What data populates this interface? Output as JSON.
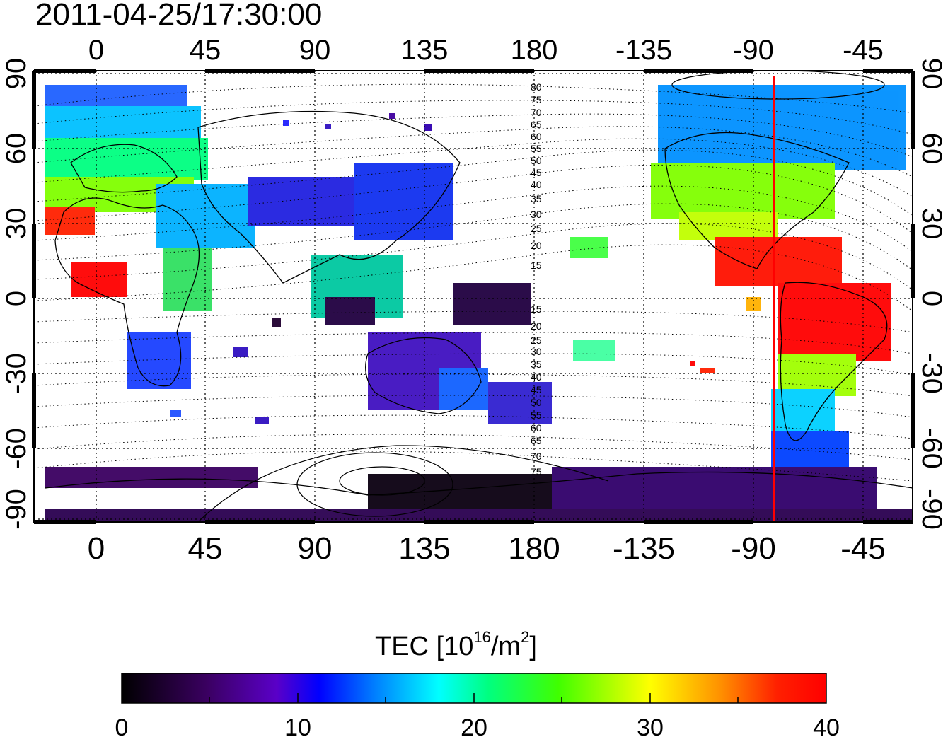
{
  "title": "2011-04-25/17:30:00",
  "map": {
    "lon_ticks_top": [
      "0",
      "45",
      "90",
      "135",
      "180",
      "-135",
      "-90",
      "-45"
    ],
    "lon_ticks_bottom": [
      "0",
      "45",
      "90",
      "135",
      "180",
      "-135",
      "-90",
      "-45"
    ],
    "lat_ticks_left": [
      "90",
      "60",
      "30",
      "0",
      "-30",
      "-60",
      "-90"
    ],
    "lat_ticks_right": [
      "90",
      "60",
      "30",
      "0",
      "-30",
      "-60",
      "-90"
    ],
    "contour_labels_north": [
      "80",
      "75",
      "70",
      "65",
      "60",
      "55",
      "50",
      "45",
      "40",
      "35",
      "30",
      "25",
      "20",
      "15"
    ],
    "contour_labels_south": [
      "15",
      "20",
      "25",
      "30",
      "35",
      "40",
      "45",
      "50",
      "55",
      "60",
      "65",
      "70",
      "75"
    ],
    "meridian_marker_lon": -85,
    "marker_color": "#ff0000"
  },
  "colorbar": {
    "title_text": "TEC  [10",
    "title_sup1": "16",
    "title_mid": "/m",
    "title_sup2": "2",
    "title_end": "]",
    "tick_labels": [
      "0",
      "10",
      "20",
      "30",
      "40"
    ],
    "min": 0,
    "max": 40,
    "colors": [
      "#000000",
      "#3a0060",
      "#5a00c8",
      "#0000ff",
      "#0080ff",
      "#00ffff",
      "#00ff60",
      "#60ff00",
      "#ffff00",
      "#ff9000",
      "#ff2000",
      "#ff0000"
    ]
  }
}
